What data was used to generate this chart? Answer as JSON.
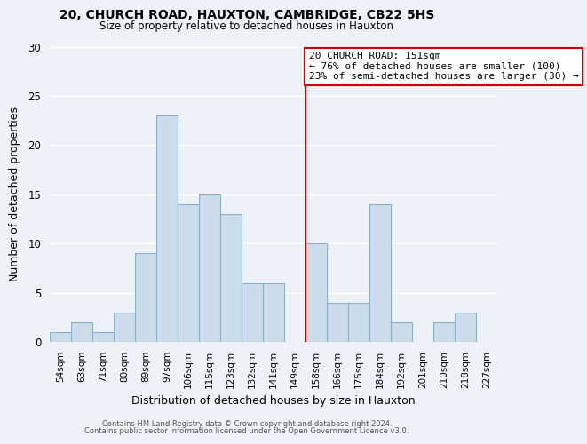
{
  "title1": "20, CHURCH ROAD, HAUXTON, CAMBRIDGE, CB22 5HS",
  "title2": "Size of property relative to detached houses in Hauxton",
  "xlabel": "Distribution of detached houses by size in Hauxton",
  "ylabel": "Number of detached properties",
  "bar_labels": [
    "54sqm",
    "63sqm",
    "71sqm",
    "80sqm",
    "89sqm",
    "97sqm",
    "106sqm",
    "115sqm",
    "123sqm",
    "132sqm",
    "141sqm",
    "149sqm",
    "158sqm",
    "166sqm",
    "175sqm",
    "184sqm",
    "192sqm",
    "201sqm",
    "210sqm",
    "218sqm",
    "227sqm"
  ],
  "bar_values": [
    1,
    2,
    1,
    3,
    9,
    23,
    14,
    15,
    13,
    6,
    6,
    0,
    10,
    4,
    4,
    14,
    2,
    0,
    2,
    3,
    0
  ],
  "bar_color": "#ccdce8",
  "bar_edgecolor": "#8ab0cc",
  "vline_x_index": 11,
  "vline_color": "#cc0000",
  "annotation_title": "20 CHURCH ROAD: 151sqm",
  "annotation_line1": "← 76% of detached houses are smaller (100)",
  "annotation_line2": "23% of semi-detached houses are larger (30) →",
  "annotation_box_edgecolor": "#cc0000",
  "ylim": [
    0,
    30
  ],
  "yticks": [
    0,
    5,
    10,
    15,
    20,
    25,
    30
  ],
  "footer1": "Contains HM Land Registry data © Crown copyright and database right 2024.",
  "footer2": "Contains public sector information licensed under the Open Government Licence v3.0.",
  "background_color": "#eef2f7",
  "grid_color": "#ffffff"
}
